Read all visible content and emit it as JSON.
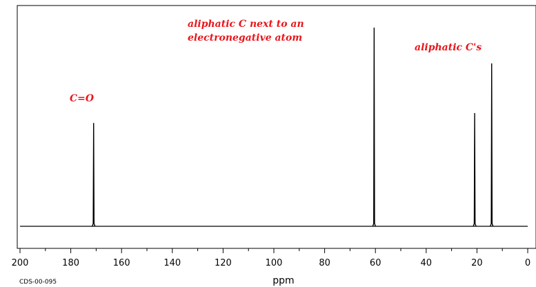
{
  "chart_data": {
    "type": "line",
    "title": "",
    "xlabel": "ppm",
    "ylabel": "",
    "xlim": [
      200,
      0
    ],
    "x_reversed": true,
    "grid": false,
    "xticks": [
      200,
      180,
      160,
      140,
      120,
      100,
      80,
      60,
      40,
      20,
      0
    ],
    "peaks": [
      {
        "x": 171.0,
        "height": 0.52
      },
      {
        "x": 60.5,
        "height": 1.0
      },
      {
        "x": 20.9,
        "height": 0.57
      },
      {
        "x": 14.2,
        "height": 0.82
      }
    ],
    "annotations": [
      {
        "lines": [
          "C=O"
        ]
      },
      {
        "lines": [
          "aliphatic C next to an",
          "electronegative atom"
        ]
      },
      {
        "lines": [
          "aliphatic C's"
        ]
      }
    ],
    "footnote": "CDS-00-095"
  },
  "colors": {
    "annotation": "#e8161b",
    "spectrum": "#000000"
  }
}
